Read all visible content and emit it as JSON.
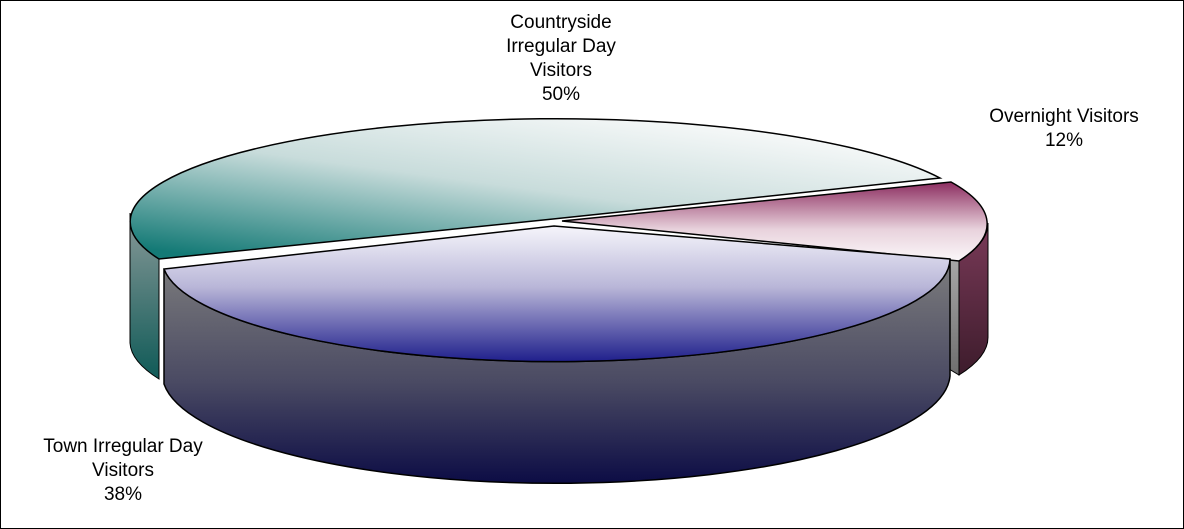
{
  "chart_data": {
    "type": "pie",
    "title": "",
    "style": "3d-exploded",
    "legend": "none",
    "slices": [
      {
        "name_lines": [
          "Countryside",
          "Irregular Day",
          "Visitors"
        ],
        "label": "50%",
        "value": 50,
        "colors": {
          "light": "#f7f9f9",
          "dark": "#1a7f7b"
        }
      },
      {
        "name_lines": [
          "Overnight Visitors"
        ],
        "label": "12%",
        "value": 12,
        "colors": {
          "light": "#fbf5f8",
          "dark": "#8c2d60"
        }
      },
      {
        "name_lines": [
          "Town Irregular Day",
          "Visitors"
        ],
        "label": "38%",
        "value": 38,
        "colors": {
          "light": "#f4f3fb",
          "dark": "#1f1f8c"
        }
      }
    ]
  }
}
